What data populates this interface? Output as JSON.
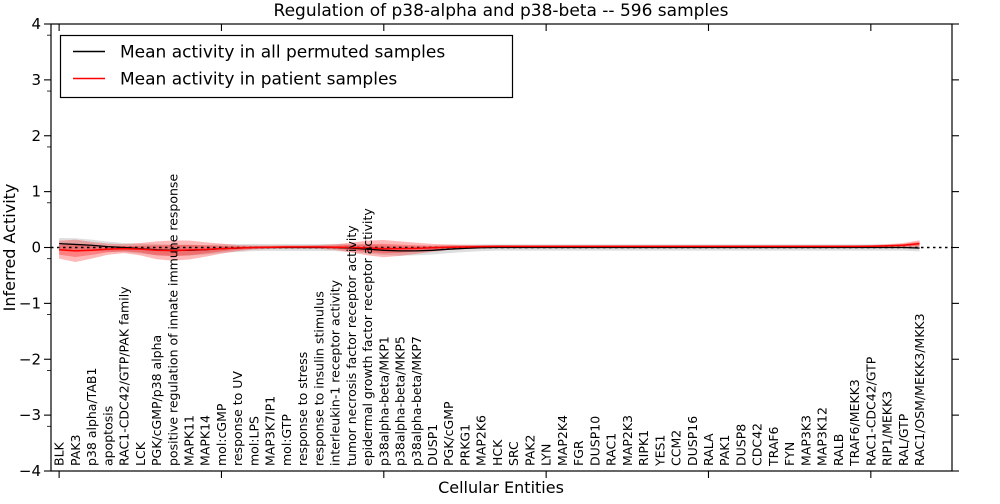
{
  "title": "Regulation of p38-alpha and p38-beta -- 596 samples",
  "axes": {
    "ylabel": "Inferred Activity",
    "xlabel": "Cellular Entities"
  },
  "legend": {
    "items": [
      {
        "label": "Mean activity in all permuted samples",
        "color": "#000000"
      },
      {
        "label": "Mean activity in patient samples",
        "color": "#ff0000"
      }
    ]
  },
  "chart_data": {
    "type": "line",
    "title": "Regulation of p38-alpha and p38-beta -- 596 samples",
    "xlabel": "Cellular Entities",
    "ylabel": "Inferred Activity",
    "ylim": [
      -4,
      4
    ],
    "grid": false,
    "legend_position": "upper left",
    "zero_line": {
      "style": "dashed",
      "color": "#000000",
      "y": 0
    },
    "yticks": [
      4,
      3,
      2,
      1,
      0,
      -1,
      -2,
      -3,
      -4
    ],
    "ytick_labels": [
      "4",
      "3",
      "2",
      "1",
      "0",
      "−1",
      "−2",
      "−3",
      "−4"
    ],
    "xtick_positions": [
      0,
      10,
      20,
      30,
      40,
      50
    ],
    "categories": [
      "BLK",
      "PAK3",
      "p38 alpha/TAB1",
      "apoptosis",
      "RAC1-CDC42/GTP/PAK family",
      "LCK",
      "PGK/cGMP/p38 alpha",
      "positive regulation of innate immune response",
      "MAPK11",
      "MAPK14",
      "mol:cGMP",
      "response to UV",
      "mol:LPS",
      "MAP3K7IP1",
      "mol:GTP",
      "response to stress",
      "response to insulin stimulus",
      "interleukin-1 receptor activity",
      "tumor necrosis factor receptor activity",
      "epidermal growth factor receptor activity",
      "p38alpha-beta/MKP1",
      "p38alpha-beta/MKP5",
      "p38alpha-beta/MKP7",
      "DUSP1",
      "PGK/cGMP",
      "PRKG1",
      "MAP2K6",
      "HCK",
      "SRC",
      "PAK2",
      "LYN",
      "MAP2K4",
      "FGR",
      "DUSP10",
      "RAC1",
      "MAP2K3",
      "RIPK1",
      "YES1",
      "CCM2",
      "DUSP16",
      "RALA",
      "PAK1",
      "DUSP8",
      "CDC42",
      "TRAF6",
      "FYN",
      "MAP3K3",
      "MAP3K12",
      "RALB",
      "TRAF6/MEKK3",
      "RAC1-CDC42/GTP",
      "RIP1/MEKK3",
      "RAL/GTP",
      "RAC1/OSM/MEKK3/MKK3"
    ],
    "series": [
      {
        "name": "Mean activity in all permuted samples",
        "color": "#000000",
        "values": [
          0.07,
          0.055,
          0.04,
          0.015,
          0.0,
          -0.02,
          -0.04,
          -0.05,
          -0.05,
          -0.04,
          -0.02,
          -0.01,
          0,
          0,
          0,
          0,
          0,
          0,
          -0.01,
          -0.03,
          -0.05,
          -0.06,
          -0.06,
          -0.05,
          -0.03,
          -0.015,
          -0.005,
          0,
          0,
          0,
          0,
          0,
          0,
          0,
          0,
          0,
          0,
          0,
          0,
          0,
          0,
          0,
          0,
          0,
          0,
          0,
          0,
          0,
          0,
          0,
          0,
          0,
          0,
          -0.01
        ],
        "band_half_widths": [
          0.1,
          0.11,
          0.1,
          0.09,
          0.08,
          0.09,
          0.1,
          0.1,
          0.095,
          0.085,
          0.075,
          0.07,
          0.065,
          0.06,
          0.06,
          0.06,
          0.06,
          0.065,
          0.07,
          0.08,
          0.085,
          0.085,
          0.08,
          0.075,
          0.07,
          0.065,
          0.06,
          0.055,
          0.055,
          0.055,
          0.055,
          0.055,
          0.055,
          0.055,
          0.055,
          0.055,
          0.055,
          0.055,
          0.055,
          0.055,
          0.055,
          0.055,
          0.055,
          0.055,
          0.055,
          0.055,
          0.055,
          0.055,
          0.055,
          0.055,
          0.055,
          0.055,
          0.055,
          0.06
        ],
        "band_color": "#000000",
        "band_opacity": 0.13
      },
      {
        "name": "Mean activity in patient samples",
        "color": "#ff0000",
        "values": [
          -0.04,
          -0.06,
          -0.05,
          -0.03,
          -0.02,
          -0.03,
          -0.05,
          -0.055,
          -0.045,
          -0.035,
          -0.02,
          -0.01,
          0,
          0.005,
          0.01,
          0.01,
          0.01,
          0.005,
          0,
          -0.01,
          -0.02,
          -0.02,
          -0.015,
          -0.005,
          0.005,
          0.01,
          0.015,
          0.02,
          0.02,
          0.02,
          0.02,
          0.02,
          0.02,
          0.02,
          0.02,
          0.02,
          0.02,
          0.02,
          0.02,
          0.02,
          0.02,
          0.02,
          0.02,
          0.02,
          0.02,
          0.02,
          0.02,
          0.02,
          0.02,
          0.02,
          0.022,
          0.03,
          0.04,
          0.07
        ],
        "band_half_widths": [
          0.16,
          0.2,
          0.15,
          0.1,
          0.08,
          0.11,
          0.16,
          0.18,
          0.17,
          0.13,
          0.09,
          0.055,
          0.035,
          0.03,
          0.03,
          0.03,
          0.035,
          0.05,
          0.09,
          0.13,
          0.155,
          0.13,
          0.1,
          0.07,
          0.05,
          0.04,
          0.03,
          0.025,
          0.022,
          0.02,
          0.02,
          0.02,
          0.02,
          0.02,
          0.02,
          0.02,
          0.02,
          0.02,
          0.02,
          0.02,
          0.02,
          0.02,
          0.02,
          0.02,
          0.02,
          0.02,
          0.02,
          0.02,
          0.02,
          0.02,
          0.022,
          0.028,
          0.04,
          0.06
        ],
        "band_color": "#ff0000",
        "band_opacity": 0.28
      }
    ]
  }
}
